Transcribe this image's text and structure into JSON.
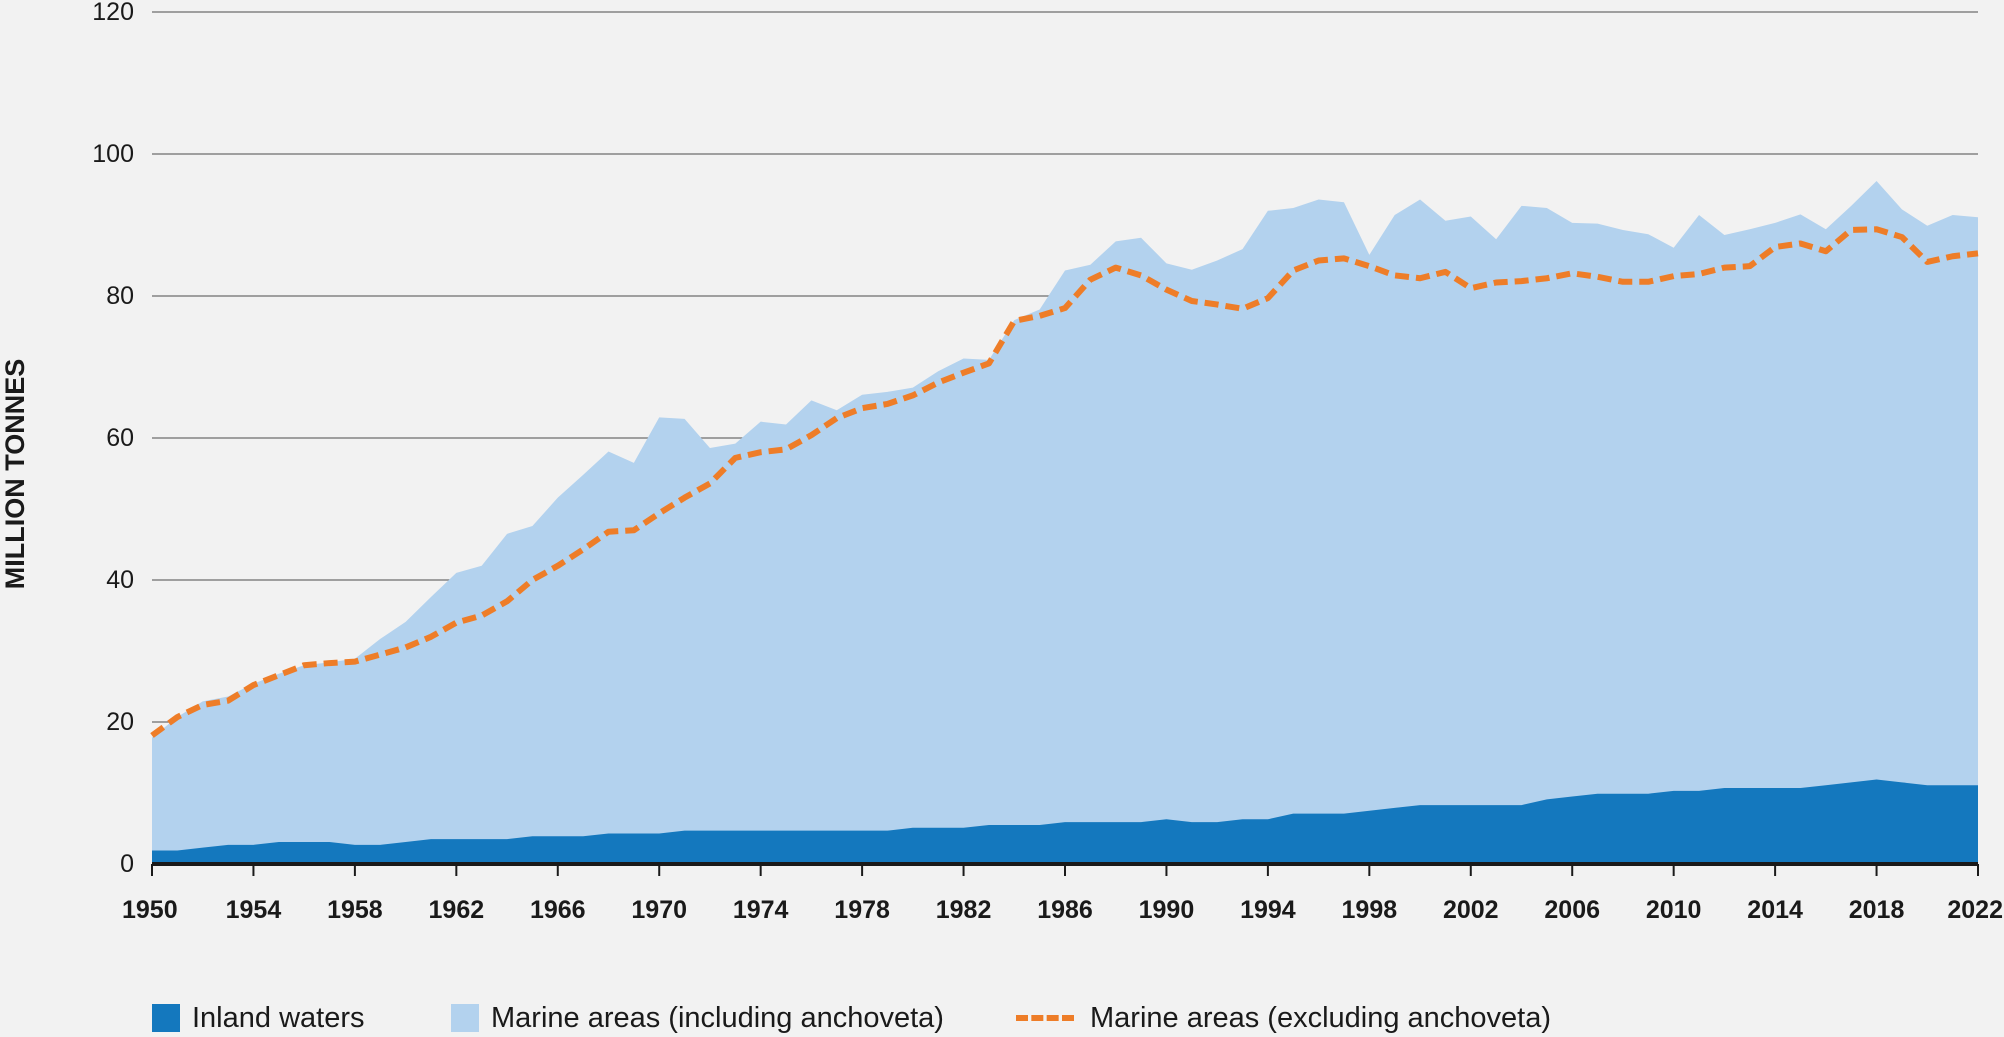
{
  "chart_data": {
    "type": "area",
    "ylabel": "MILLION TONNES",
    "ylim": [
      0,
      120
    ],
    "yticks": [
      0,
      20,
      40,
      60,
      80,
      100,
      120
    ],
    "xlim": [
      1950,
      2022
    ],
    "xticks": [
      1950,
      1954,
      1958,
      1962,
      1966,
      1970,
      1974,
      1978,
      1982,
      1986,
      1990,
      1994,
      1998,
      2002,
      2006,
      2010,
      2014,
      2018,
      2022
    ],
    "grid": "horizontal",
    "legend_position": "bottom",
    "colors": {
      "inland": "#1478be",
      "marine_including": "#b3d2ee",
      "marine_excluding": "#ee7d28",
      "grid": "#6e6e6e",
      "axis": "#1a1a1a"
    },
    "x": [
      1950,
      1951,
      1952,
      1953,
      1954,
      1955,
      1956,
      1957,
      1958,
      1959,
      1960,
      1961,
      1962,
      1963,
      1964,
      1965,
      1966,
      1967,
      1968,
      1969,
      1970,
      1971,
      1972,
      1973,
      1974,
      1975,
      1976,
      1977,
      1978,
      1979,
      1980,
      1981,
      1982,
      1983,
      1984,
      1985,
      1986,
      1987,
      1988,
      1989,
      1990,
      1991,
      1992,
      1993,
      1994,
      1995,
      1996,
      1997,
      1998,
      1999,
      2000,
      2001,
      2002,
      2003,
      2004,
      2005,
      2006,
      2007,
      2008,
      2009,
      2010,
      2011,
      2012,
      2013,
      2014,
      2015,
      2016,
      2017,
      2018,
      2019,
      2020,
      2021,
      2022
    ],
    "series": [
      {
        "name": "Inland waters",
        "render": "area",
        "values": [
          1.9,
          1.9,
          2.3,
          2.7,
          2.7,
          3.1,
          3.1,
          3.1,
          2.7,
          2.7,
          3.1,
          3.5,
          3.5,
          3.5,
          3.5,
          3.9,
          3.9,
          3.9,
          4.3,
          4.3,
          4.3,
          4.7,
          4.7,
          4.7,
          4.7,
          4.7,
          4.7,
          4.7,
          4.7,
          4.7,
          5.1,
          5.1,
          5.1,
          5.5,
          5.5,
          5.5,
          5.9,
          5.9,
          5.9,
          5.9,
          6.3,
          5.9,
          5.9,
          6.3,
          6.3,
          7.1,
          7.1,
          7.1,
          7.5,
          7.9,
          8.3,
          8.3,
          8.3,
          8.3,
          8.3,
          9.1,
          9.5,
          9.9,
          9.9,
          9.9,
          10.3,
          10.3,
          10.7,
          10.7,
          10.7,
          10.7,
          11.1,
          11.5,
          11.9,
          11.5,
          11.1,
          11.1,
          11.1
        ]
      },
      {
        "name": "Marine areas (including anchoveta)",
        "render": "area",
        "values": [
          17.8,
          20.7,
          22.9,
          23.6,
          25.4,
          26.8,
          28.0,
          28.4,
          28.9,
          31.7,
          34.1,
          37.6,
          41.0,
          42.0,
          46.5,
          47.6,
          51.6,
          54.8,
          58.1,
          56.5,
          62.9,
          62.7,
          58.6,
          59.2,
          62.3,
          61.9,
          65.3,
          63.9,
          66.1,
          66.5,
          67.1,
          69.4,
          71.2,
          71.0,
          76.6,
          78.1,
          83.6,
          84.4,
          87.7,
          88.2,
          84.6,
          83.7,
          85.0,
          86.6,
          92.0,
          92.4,
          93.6,
          93.2,
          85.8,
          91.4,
          93.6,
          90.6,
          91.2,
          88.0,
          92.7,
          92.4,
          90.3,
          90.2,
          89.3,
          88.7,
          86.8,
          91.4,
          88.6,
          89.4,
          90.3,
          91.5,
          89.4,
          92.7,
          96.2,
          92.2,
          89.9,
          91.4,
          91.1
        ]
      },
      {
        "name": "Marine areas (excluding anchoveta)",
        "render": "dashed-line",
        "values": [
          18.1,
          20.7,
          22.4,
          23.0,
          25.2,
          26.6,
          28.0,
          28.3,
          28.5,
          29.5,
          30.5,
          32.0,
          34.0,
          35.0,
          37.0,
          40.0,
          42.0,
          44.3,
          46.8,
          47.0,
          49.4,
          51.6,
          53.6,
          57.2,
          58.0,
          58.4,
          60.4,
          62.8,
          64.2,
          64.8,
          66.0,
          67.8,
          69.2,
          70.5,
          76.5,
          77.2,
          78.3,
          82.3,
          84.0,
          82.9,
          80.9,
          79.3,
          78.8,
          78.2,
          79.7,
          83.6,
          85.0,
          85.3,
          84.2,
          82.9,
          82.5,
          83.4,
          81.1,
          81.9,
          82.1,
          82.5,
          83.2,
          82.7,
          82.0,
          82.0,
          82.8,
          83.1,
          84.0,
          84.2,
          86.9,
          87.4,
          86.3,
          89.3,
          89.4,
          88.3,
          84.8,
          85.6,
          86.0
        ]
      }
    ]
  }
}
